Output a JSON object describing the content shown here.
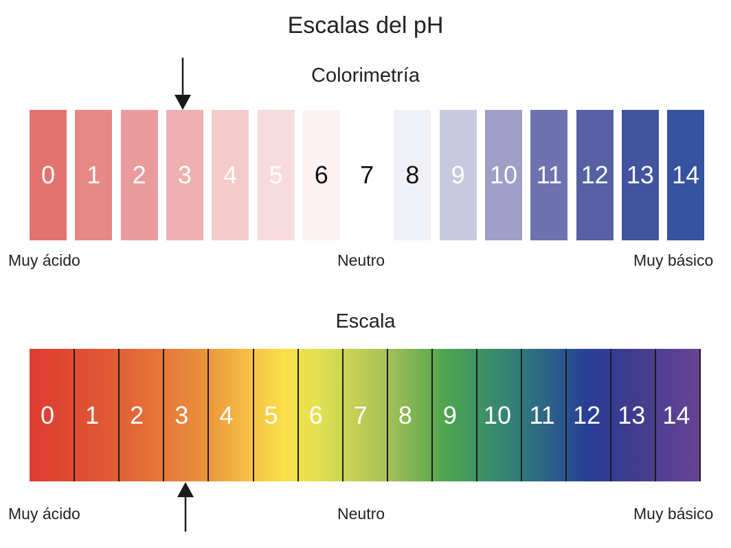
{
  "title": "Escalas del pH",
  "colorimetry": {
    "heading": "Colorimetría",
    "indicator_value": 3,
    "swatches": [
      {
        "label": "0",
        "color": "#e27371",
        "text_color": "#ffffff"
      },
      {
        "label": "1",
        "color": "#e68886",
        "text_color": "#ffffff"
      },
      {
        "label": "2",
        "color": "#ea9c9d",
        "text_color": "#ffffff"
      },
      {
        "label": "3",
        "color": "#eeb0b1",
        "text_color": "#ffffff"
      },
      {
        "label": "4",
        "color": "#f4cbcb",
        "text_color": "#ffffff"
      },
      {
        "label": "5",
        "color": "#f8dcdd",
        "text_color": "#ffffff"
      },
      {
        "label": "6",
        "color": "#fcf1f3",
        "text_color": "#111111"
      },
      {
        "label": "7",
        "color": "#ffffff",
        "text_color": "#111111"
      },
      {
        "label": "8",
        "color": "#f0f0f7",
        "text_color": "#111111"
      },
      {
        "label": "9",
        "color": "#c8c8de",
        "text_color": "#ffffff"
      },
      {
        "label": "10",
        "color": "#a09dc7",
        "text_color": "#ffffff"
      },
      {
        "label": "11",
        "color": "#6e73af",
        "text_color": "#ffffff"
      },
      {
        "label": "12",
        "color": "#5660a3",
        "text_color": "#ffffff"
      },
      {
        "label": "13",
        "color": "#4254a0",
        "text_color": "#ffffff"
      },
      {
        "label": "14",
        "color": "#37529e",
        "text_color": "#ffffff"
      }
    ],
    "captions": {
      "left": "Muy ácido",
      "center": "Neutro",
      "right": "Muy básico"
    }
  },
  "scale": {
    "heading": "Escala",
    "indicator_value": 3,
    "labels": [
      "0",
      "1",
      "2",
      "3",
      "4",
      "5",
      "6",
      "7",
      "8",
      "9",
      "10",
      "11",
      "12",
      "13",
      "14"
    ],
    "captions": {
      "left": "Muy ácido",
      "center": "Neutro",
      "right": "Muy básico"
    }
  },
  "colors": {
    "arrow": "#1a1a1a",
    "divider": "#1a1a1a",
    "text": "#222222"
  }
}
